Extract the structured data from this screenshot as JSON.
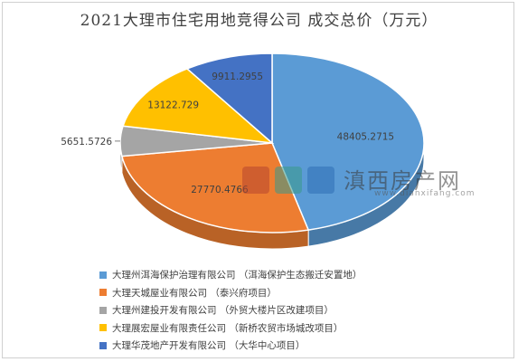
{
  "chart_data": {
    "type": "pie",
    "title": "2021大理市住宅用地竞得公司 成交总价（万元）",
    "slices": [
      {
        "label": "大理州洱海保护治理有限公司 （洱海保护生态搬迁安置地）",
        "value": 48405.2715,
        "value_label": "48405.2715",
        "color": "#5b9bd5"
      },
      {
        "label": "大理天城屋业有限公司 （泰兴府项目）",
        "value": 27770.4766,
        "value_label": "27770.4766",
        "color": "#ed7d31"
      },
      {
        "label": "大理州建投开发有限公司 （外贸大楼片区改建项目）",
        "value": 5651.5726,
        "value_label": "5651.5726",
        "color": "#a5a5a5"
      },
      {
        "label": "大理展宏屋业有限责任公司 （新桥农贸市场城改项目）",
        "value": 13122.729,
        "value_label": "13122.729",
        "color": "#ffc000"
      },
      {
        "label": "大理华茂地产开发有限公司 （大华中心项目）",
        "value": 9911.2955,
        "value_label": "9911.2955",
        "color": "#4472c4"
      }
    ],
    "legend_position": "bottom"
  },
  "watermark": {
    "name": "滇西房产网",
    "site": "www.dianxifang.com"
  }
}
